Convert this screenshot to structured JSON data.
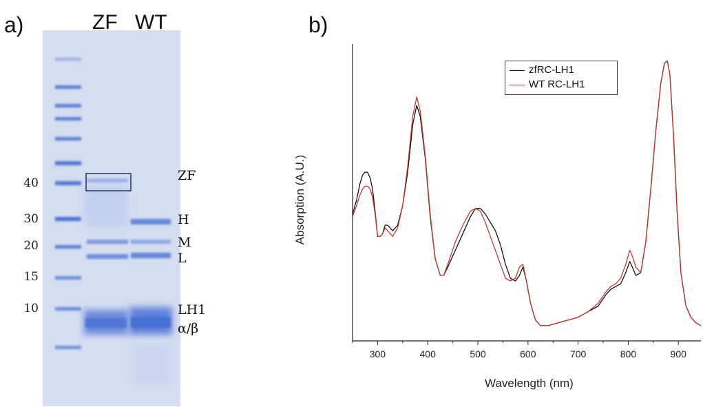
{
  "panel_a": {
    "letter": "a)",
    "lanes": [
      "ZF",
      "WT"
    ],
    "mw_markers": [
      "40",
      "30",
      "20",
      "15",
      "10"
    ],
    "band_labels": [
      "ZF",
      "H",
      "M",
      "L",
      "LH1",
      "α/β"
    ]
  },
  "panel_b": {
    "letter": "b)"
  },
  "chart_data": {
    "type": "line",
    "title": "",
    "xlabel": "Wavelength (nm)",
    "ylabel": "Absorption (A.U.)",
    "xlim": [
      250,
      945
    ],
    "ylim": [
      0,
      1
    ],
    "xticks": [
      300,
      400,
      500,
      600,
      700,
      800,
      900
    ],
    "legend_position": "top-right",
    "series": [
      {
        "name": "zfRC-LH1",
        "color": "#111111",
        "x": [
          250,
          258,
          265,
          270,
          275,
          280,
          285,
          290,
          295,
          300,
          305,
          310,
          315,
          320,
          325,
          330,
          340,
          350,
          360,
          370,
          378,
          385,
          395,
          405,
          415,
          425,
          432,
          440,
          455,
          470,
          485,
          495,
          505,
          515,
          525,
          535,
          545,
          555,
          565,
          575,
          583,
          590,
          597,
          605,
          615,
          625,
          640,
          660,
          680,
          700,
          720,
          740,
          755,
          765,
          775,
          785,
          795,
          803,
          808,
          815,
          825,
          835,
          845,
          855,
          865,
          872,
          878,
          883,
          890,
          898,
          905,
          915,
          925,
          935,
          945
        ],
        "y": [
          0.43,
          0.48,
          0.54,
          0.57,
          0.58,
          0.58,
          0.56,
          0.52,
          0.44,
          0.35,
          0.35,
          0.36,
          0.39,
          0.39,
          0.38,
          0.37,
          0.39,
          0.46,
          0.58,
          0.75,
          0.82,
          0.78,
          0.63,
          0.42,
          0.27,
          0.21,
          0.21,
          0.24,
          0.3,
          0.36,
          0.42,
          0.45,
          0.45,
          0.43,
          0.4,
          0.37,
          0.32,
          0.25,
          0.2,
          0.19,
          0.21,
          0.24,
          0.19,
          0.11,
          0.05,
          0.03,
          0.03,
          0.04,
          0.05,
          0.06,
          0.08,
          0.1,
          0.14,
          0.16,
          0.17,
          0.18,
          0.22,
          0.26,
          0.24,
          0.21,
          0.22,
          0.33,
          0.52,
          0.73,
          0.9,
          0.97,
          0.98,
          0.93,
          0.72,
          0.42,
          0.22,
          0.1,
          0.06,
          0.04,
          0.03
        ]
      },
      {
        "name": "WT RC-LH1",
        "color": "#c0392b",
        "x": [
          250,
          258,
          265,
          270,
          275,
          280,
          285,
          290,
          295,
          300,
          305,
          310,
          315,
          320,
          325,
          330,
          340,
          350,
          360,
          370,
          378,
          385,
          395,
          405,
          415,
          425,
          432,
          440,
          455,
          470,
          485,
          495,
          505,
          515,
          525,
          535,
          545,
          555,
          565,
          575,
          583,
          590,
          597,
          605,
          615,
          625,
          640,
          660,
          680,
          700,
          720,
          740,
          755,
          765,
          775,
          785,
          795,
          803,
          808,
          815,
          825,
          835,
          845,
          855,
          865,
          872,
          878,
          883,
          890,
          898,
          905,
          915,
          925,
          935,
          945
        ],
        "y": [
          0.42,
          0.46,
          0.5,
          0.52,
          0.53,
          0.53,
          0.52,
          0.49,
          0.43,
          0.35,
          0.35,
          0.36,
          0.38,
          0.37,
          0.36,
          0.35,
          0.38,
          0.46,
          0.6,
          0.78,
          0.85,
          0.8,
          0.64,
          0.43,
          0.27,
          0.21,
          0.21,
          0.25,
          0.33,
          0.39,
          0.44,
          0.45,
          0.44,
          0.4,
          0.35,
          0.3,
          0.25,
          0.2,
          0.19,
          0.2,
          0.24,
          0.25,
          0.19,
          0.11,
          0.05,
          0.03,
          0.03,
          0.04,
          0.05,
          0.06,
          0.08,
          0.11,
          0.15,
          0.17,
          0.18,
          0.2,
          0.25,
          0.3,
          0.28,
          0.24,
          0.22,
          0.33,
          0.52,
          0.73,
          0.9,
          0.97,
          0.98,
          0.93,
          0.72,
          0.42,
          0.22,
          0.1,
          0.06,
          0.04,
          0.03
        ]
      }
    ]
  }
}
